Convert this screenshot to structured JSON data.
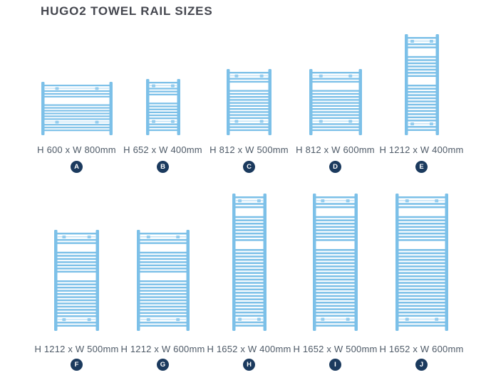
{
  "title": "HUGO2 TOWEL RAIL SIZES",
  "colors": {
    "rail_blue": "#7cc0e8",
    "rail_light_stripe": "#bde0f5",
    "rail_bracket": "#93ccee",
    "badge_navy": "#1b3a5e",
    "badge_text": "#ffffff",
    "title_text": "#45474f",
    "label_text": "#4e5a67",
    "background": "#ffffff"
  },
  "rails": [
    {
      "letter": "A",
      "label": "H 600 x W 800mm",
      "h_mm": 600,
      "w_mm": 800
    },
    {
      "letter": "B",
      "label": "H 652 x W 400mm",
      "h_mm": 652,
      "w_mm": 400
    },
    {
      "letter": "C",
      "label": "H 812 x W 500mm",
      "h_mm": 812,
      "w_mm": 500
    },
    {
      "letter": "D",
      "label": "H 812 x W 600mm",
      "h_mm": 812,
      "w_mm": 600
    },
    {
      "letter": "E",
      "label": "H 1212 x W 400mm",
      "h_mm": 1212,
      "w_mm": 400
    },
    {
      "letter": "F",
      "label": "H 1212 x W 500mm",
      "h_mm": 1212,
      "w_mm": 500
    },
    {
      "letter": "G",
      "label": "H 1212 x W 600mm",
      "h_mm": 1212,
      "w_mm": 600
    },
    {
      "letter": "H",
      "label": "H 1652 x W 400mm",
      "h_mm": 1652,
      "w_mm": 400
    },
    {
      "letter": "I",
      "label": "H 1652 x W 500mm",
      "h_mm": 1652,
      "w_mm": 500
    },
    {
      "letter": "J",
      "label": "H 1652 x W 600mm",
      "h_mm": 1652,
      "w_mm": 600
    }
  ]
}
